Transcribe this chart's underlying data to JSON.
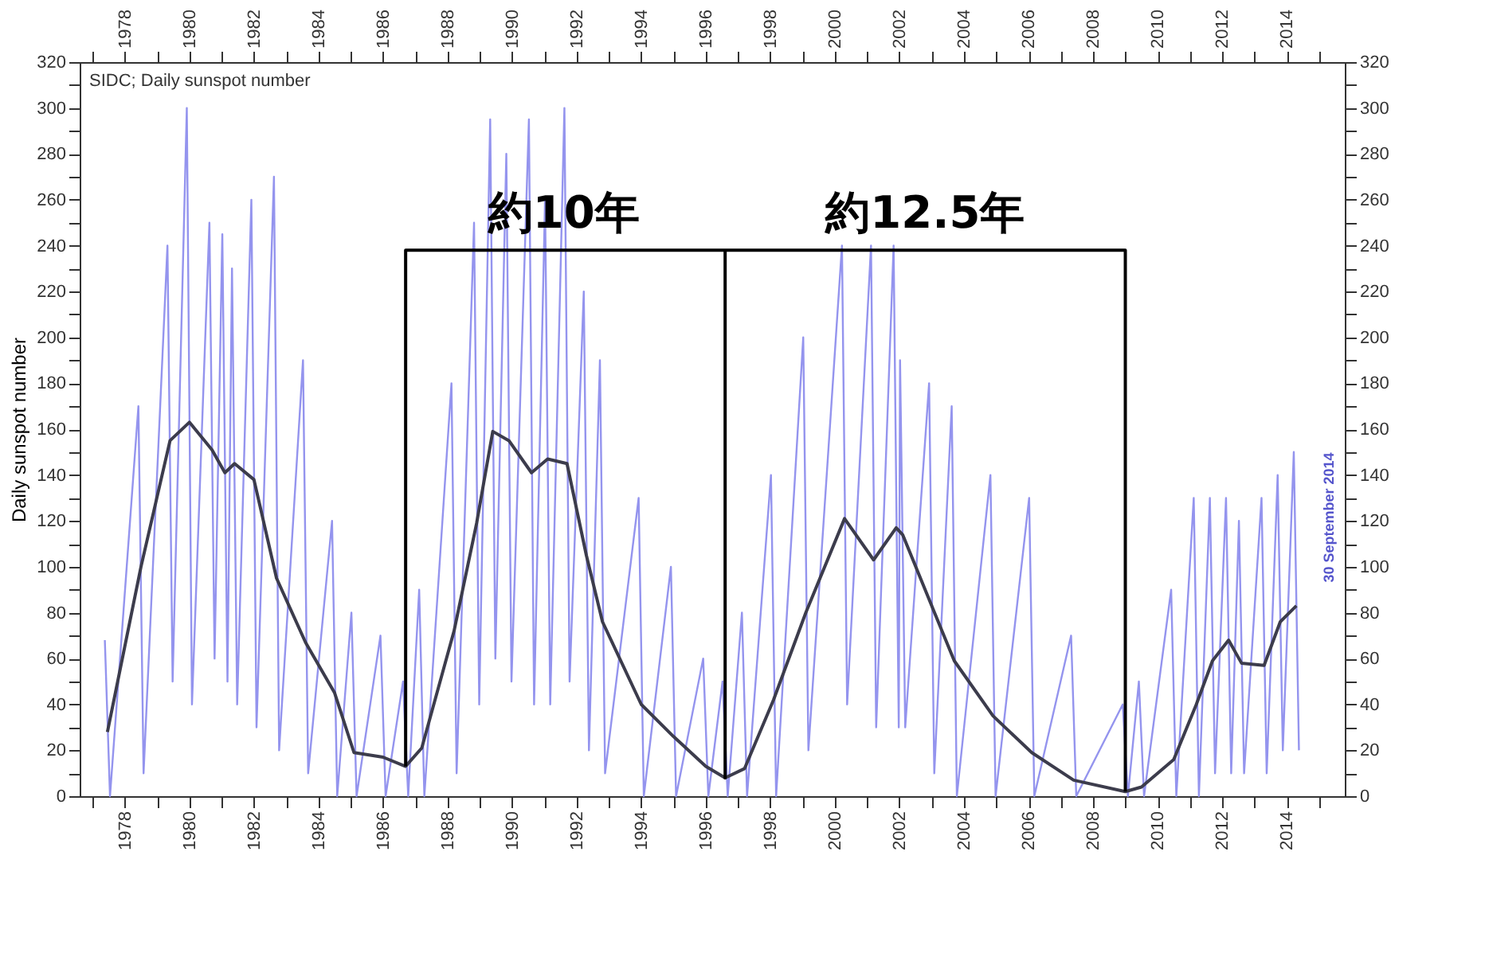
{
  "chart_data": {
    "type": "line",
    "title": "SIDC; Daily sunspot number",
    "ylabel": "Daily sunspot number",
    "x": [
      1977.46,
      1978.5,
      1979.4,
      1980.0,
      1980.7,
      1981.1,
      1981.4,
      1982.0,
      1982.7,
      1983.6,
      1984.5,
      1985.1,
      1986.0,
      1986.7,
      1987.2,
      1988.2,
      1988.9,
      1989.4,
      1989.9,
      1990.6,
      1991.1,
      1991.7,
      1992.3,
      1992.8,
      1994.0,
      1995.0,
      1996.0,
      1996.6,
      1997.2,
      1998.1,
      1999.1,
      2000.3,
      2001.2,
      2001.9,
      2002.1,
      2003.0,
      2003.7,
      2004.9,
      2006.1,
      2007.4,
      2009.0,
      2009.5,
      2010.5,
      2011.2,
      2011.7,
      2012.2,
      2012.6,
      2013.3,
      2013.8,
      2014.3
    ],
    "series": [
      {
        "color": "#9494ee",
        "x": [
          1977.38,
          1977.54,
          1978.42,
          1978.58,
          1979.32,
          1979.48,
          1979.92,
          1980.08,
          1980.62,
          1980.78,
          1981.02,
          1981.18,
          1981.32,
          1981.48,
          1981.92,
          1982.08,
          1982.62,
          1982.78,
          1983.52,
          1983.68,
          1984.42,
          1984.58,
          1985.02,
          1985.18,
          1985.92,
          1986.08,
          1986.62,
          1986.78,
          1987.12,
          1987.28,
          1988.12,
          1988.28,
          1988.82,
          1988.98,
          1989.32,
          1989.48,
          1989.82,
          1989.98,
          1990.52,
          1990.68,
          1991.02,
          1991.18,
          1991.62,
          1991.78,
          1992.22,
          1992.38,
          1992.72,
          1992.88,
          1993.92,
          1994.08,
          1994.92,
          1995.08,
          1995.92,
          1996.08,
          1996.52,
          1996.68,
          1997.12,
          1997.28,
          1998.02,
          1998.18,
          1999.02,
          1999.18,
          2000.22,
          2000.38,
          2001.12,
          2001.28,
          2001.82,
          2001.98,
          2002.02,
          2002.18,
          2002.92,
          2003.08,
          2003.62,
          2003.78,
          2004.82,
          2004.98,
          2006.02,
          2006.18,
          2007.32,
          2007.48,
          2008.92,
          2009.08,
          2009.42,
          2009.58,
          2010.42,
          2010.58,
          2011.12,
          2011.28,
          2011.62,
          2011.78,
          2012.12,
          2012.28,
          2012.52,
          2012.68,
          2013.22,
          2013.38,
          2013.72,
          2013.88,
          2014.22,
          2014.38
        ],
        "values": [
          68,
          0,
          170,
          10,
          240,
          50,
          300,
          40,
          250,
          60,
          245,
          50,
          230,
          40,
          260,
          30,
          270,
          20,
          190,
          10,
          120,
          0,
          80,
          0,
          70,
          0,
          50,
          0,
          90,
          0,
          180,
          10,
          250,
          40,
          295,
          60,
          280,
          50,
          295,
          40,
          260,
          40,
          300,
          50,
          220,
          20,
          190,
          10,
          130,
          0,
          100,
          0,
          60,
          0,
          50,
          0,
          80,
          0,
          140,
          0,
          200,
          20,
          240,
          40,
          240,
          30,
          240,
          30,
          190,
          30,
          180,
          10,
          170,
          0,
          140,
          0,
          130,
          0,
          70,
          0,
          40,
          0,
          50,
          0,
          90,
          0,
          130,
          0,
          130,
          10,
          130,
          10,
          120,
          10,
          130,
          10,
          140,
          20,
          150,
          20
        ]
      },
      {
        "color": "#3c3c4c",
        "values": [
          28,
          100,
          155,
          163,
          151,
          141,
          145,
          138,
          95,
          67,
          45,
          19,
          17,
          13,
          21,
          72,
          119,
          159,
          155,
          141,
          147,
          145,
          105,
          76,
          40,
          26,
          13,
          8,
          12,
          42,
          80,
          121,
          103,
          117,
          114,
          83,
          59,
          35,
          19,
          7,
          2,
          4,
          16,
          40,
          59,
          68,
          58,
          57,
          76,
          83
        ]
      },
      {
        "color": "#000000",
        "x": [
          1986.7,
          1986.7,
          1996.6,
          1996.6,
          1996.6,
          2009.0,
          2009.0
        ],
        "values": [
          13,
          238,
          238,
          8,
          238,
          238,
          2
        ]
      }
    ],
    "xlim": [
      1976.6,
      2015.8
    ],
    "xticks": [
      {
        "value": 1977,
        "label": null
      },
      1978,
      {
        "value": 1979,
        "label": null
      },
      1980,
      {
        "value": 1981,
        "label": null
      },
      1982,
      {
        "value": 1983,
        "label": null
      },
      1984,
      {
        "value": 1985,
        "label": null
      },
      1986,
      {
        "value": 1987,
        "label": null
      },
      1988,
      {
        "value": 1989,
        "label": null
      },
      1990,
      {
        "value": 1991,
        "label": null
      },
      1992,
      {
        "value": 1993,
        "label": null
      },
      1994,
      {
        "value": 1995,
        "label": null
      },
      1996,
      {
        "value": 1997,
        "label": null
      },
      1998,
      {
        "value": 1999,
        "label": null
      },
      2000,
      {
        "value": 2001,
        "label": null
      },
      2002,
      {
        "value": 2003,
        "label": null
      },
      2004,
      {
        "value": 2005,
        "label": null
      },
      2006,
      {
        "value": 2007,
        "label": null
      },
      2008,
      {
        "value": 2009,
        "label": null
      },
      2010,
      {
        "value": 2011,
        "label": null
      },
      2012,
      {
        "value": 2013,
        "label": null
      },
      2014,
      {
        "value": 2015,
        "label": null
      }
    ],
    "x2lim": [
      1976.6,
      2015.8
    ],
    "x2ticks": [
      {
        "value": 1977,
        "label": null
      },
      1978,
      {
        "value": 1979,
        "label": null
      },
      1980,
      {
        "value": 1981,
        "label": null
      },
      1982,
      {
        "value": 1983,
        "label": null
      },
      1984,
      {
        "value": 1985,
        "label": null
      },
      1986,
      {
        "value": 1987,
        "label": null
      },
      1988,
      {
        "value": 1989,
        "label": null
      },
      1990,
      {
        "value": 1991,
        "label": null
      },
      1992,
      {
        "value": 1993,
        "label": null
      },
      1994,
      {
        "value": 1995,
        "label": null
      },
      1996,
      {
        "value": 1997,
        "label": null
      },
      1998,
      {
        "value": 1999,
        "label": null
      },
      2000,
      {
        "value": 2001,
        "label": null
      },
      2002,
      {
        "value": 2003,
        "label": null
      },
      2004,
      {
        "value": 2005,
        "label": null
      },
      2006,
      {
        "value": 2007,
        "label": null
      },
      2008,
      {
        "value": 2009,
        "label": null
      },
      2010,
      {
        "value": 2011,
        "label": null
      },
      2012,
      {
        "value": 2013,
        "label": null
      },
      2014,
      {
        "value": 2015,
        "label": null
      }
    ],
    "ylim": [
      0,
      320
    ],
    "yticks": [
      0,
      {
        "value": 10,
        "label": null
      },
      20,
      {
        "value": 30,
        "label": null
      },
      40,
      {
        "value": 50,
        "label": null
      },
      60,
      {
        "value": 70,
        "label": null
      },
      80,
      {
        "value": 90,
        "label": null
      },
      100,
      {
        "value": 110,
        "label": null
      },
      120,
      {
        "value": 130,
        "label": null
      },
      140,
      {
        "value": 150,
        "label": null
      },
      160,
      {
        "value": 170,
        "label": null
      },
      180,
      {
        "value": 190,
        "label": null
      },
      200,
      {
        "value": 210,
        "label": null
      },
      220,
      {
        "value": 230,
        "label": null
      },
      240,
      {
        "value": 250,
        "label": null
      },
      260,
      {
        "value": 270,
        "label": null
      },
      280,
      {
        "value": 290,
        "label": null
      },
      300,
      {
        "value": 310,
        "label": null
      },
      320
    ],
    "y2lim": [
      0,
      320
    ],
    "y2ticks": [
      0,
      {
        "value": 10,
        "label": null
      },
      20,
      {
        "value": 30,
        "label": null
      },
      40,
      {
        "value": 50,
        "label": null
      },
      60,
      {
        "value": 70,
        "label": null
      },
      80,
      {
        "value": 90,
        "label": null
      },
      100,
      {
        "value": 110,
        "label": null
      },
      120,
      {
        "value": 130,
        "label": null
      },
      140,
      {
        "value": 150,
        "label": null
      },
      160,
      {
        "value": 170,
        "label": null
      },
      180,
      {
        "value": 190,
        "label": null
      },
      200,
      {
        "value": 210,
        "label": null
      },
      220,
      {
        "value": 230,
        "label": null
      },
      240,
      {
        "value": 250,
        "label": null
      },
      260,
      {
        "value": 270,
        "label": null
      },
      280,
      {
        "value": 290,
        "label": null
      },
      300,
      {
        "value": 310,
        "label": null
      },
      320
    ],
    "annotations": [
      {
        "text": "約10年",
        "x": 1991.6,
        "y": 238
      },
      {
        "text": "約12.5年",
        "x": 2002.8,
        "y": 238
      },
      "30 September 2014"
    ],
    "grid": false
  }
}
